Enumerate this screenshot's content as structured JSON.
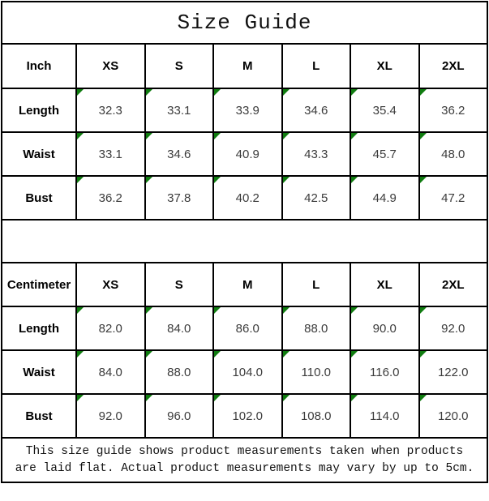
{
  "title": "Size Guide",
  "colors": {
    "marker_green": "#107c10",
    "grid_line": "#000000"
  },
  "tables": [
    {
      "unit_label": "Inch",
      "size_headers": [
        "XS",
        "S",
        "M",
        "L",
        "XL",
        "2XL"
      ],
      "rows": [
        {
          "label": "Length",
          "values": [
            "32.3",
            "33.1",
            "33.9",
            "34.6",
            "35.4",
            "36.2"
          ]
        },
        {
          "label": "Waist",
          "values": [
            "33.1",
            "34.6",
            "40.9",
            "43.3",
            "45.7",
            "48.0"
          ]
        },
        {
          "label": "Bust",
          "values": [
            "36.2",
            "37.8",
            "40.2",
            "42.5",
            "44.9",
            "47.2"
          ]
        }
      ]
    },
    {
      "unit_label": "Centimeter",
      "size_headers": [
        "XS",
        "S",
        "M",
        "L",
        "XL",
        "2XL"
      ],
      "rows": [
        {
          "label": "Length",
          "values": [
            "82.0",
            "84.0",
            "86.0",
            "88.0",
            "90.0",
            "92.0"
          ]
        },
        {
          "label": "Waist",
          "values": [
            "84.0",
            "88.0",
            "104.0",
            "110.0",
            "116.0",
            "122.0"
          ]
        },
        {
          "label": "Bust",
          "values": [
            "92.0",
            "96.0",
            "102.0",
            "108.0",
            "114.0",
            "120.0"
          ]
        }
      ]
    }
  ],
  "footer": {
    "line1": "This size guide shows product measurements taken when products",
    "line2": "are laid flat. Actual product measurements may vary by up to 5cm."
  },
  "chart_data": [
    {
      "type": "table",
      "title": "Size Guide (Inch)",
      "columns": [
        "Inch",
        "XS",
        "S",
        "M",
        "L",
        "XL",
        "2XL"
      ],
      "rows": [
        [
          "Length",
          32.3,
          33.1,
          33.9,
          34.6,
          35.4,
          36.2
        ],
        [
          "Waist",
          33.1,
          34.6,
          40.9,
          43.3,
          45.7,
          48.0
        ],
        [
          "Bust",
          36.2,
          37.8,
          40.2,
          42.5,
          44.9,
          47.2
        ]
      ]
    },
    {
      "type": "table",
      "title": "Size Guide (Centimeter)",
      "columns": [
        "Centimeter",
        "XS",
        "S",
        "M",
        "L",
        "XL",
        "2XL"
      ],
      "rows": [
        [
          "Length",
          82.0,
          84.0,
          86.0,
          88.0,
          90.0,
          92.0
        ],
        [
          "Waist",
          84.0,
          88.0,
          104.0,
          110.0,
          116.0,
          122.0
        ],
        [
          "Bust",
          92.0,
          96.0,
          102.0,
          108.0,
          114.0,
          120.0
        ]
      ]
    }
  ]
}
